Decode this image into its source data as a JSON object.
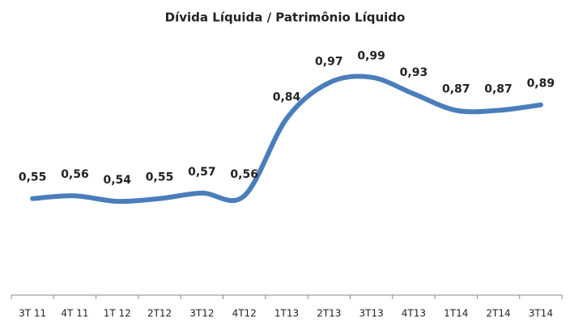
{
  "chart_data": {
    "type": "line",
    "title": "Dívida Líquida / Patrimônio Líquido",
    "categories": [
      "3T 11",
      "4T 11",
      "1T 12",
      "2T12",
      "3T12",
      "4T12",
      "1T13",
      "2T13",
      "3T13",
      "4T13",
      "1T14",
      "2T14",
      "3T14"
    ],
    "values": [
      0.55,
      0.56,
      0.54,
      0.55,
      0.57,
      0.56,
      0.84,
      0.97,
      0.99,
      0.93,
      0.87,
      0.87,
      0.89
    ],
    "value_labels": [
      "0,55",
      "0,56",
      "0,54",
      "0,55",
      "0,57",
      "0,56",
      "0,84",
      "0,97",
      "0,99",
      "0,93",
      "0,87",
      "0,87",
      "0,89"
    ],
    "color": "#4a7ebb",
    "smooth": true,
    "ylim": [
      0.2,
      1.15
    ]
  }
}
